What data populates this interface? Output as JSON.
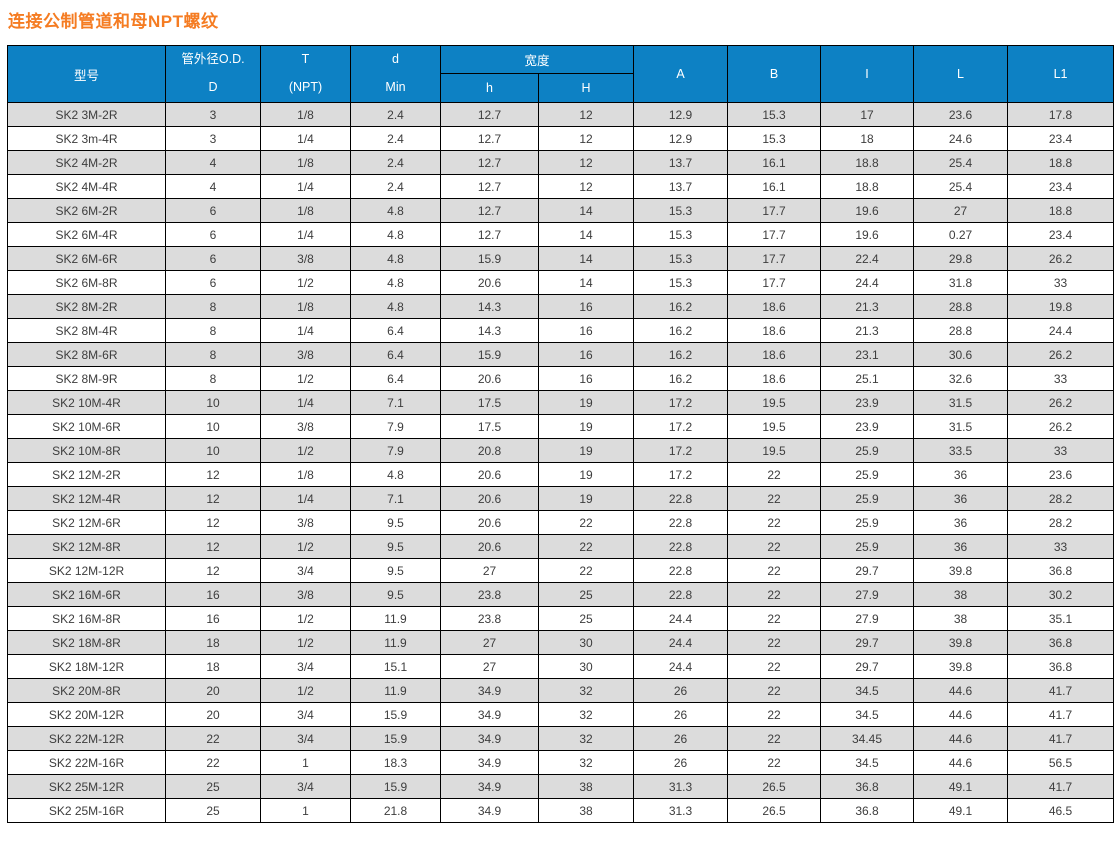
{
  "page_title": "连接公制管道和母NPT螺纹",
  "colors": {
    "title": "#f57c22",
    "header_bg": "#0d81c4",
    "header_text": "#ffffff",
    "stripe_row_bg": "#dcdcdc",
    "cell_text": "#3d3d3d",
    "border": "#000000"
  },
  "table": {
    "headers": {
      "model": "型号",
      "od_line1": "管外径O.D.",
      "od_line2": "D",
      "t_line1": "T",
      "t_line2": "(NPT)",
      "d_line1": "d",
      "d_line2": "Min",
      "width_group": "宽度",
      "width_sub_h": "h",
      "width_sub_H": "H",
      "col_a": "A",
      "col_b": "B",
      "col_i": "I",
      "col_l": "L",
      "col_l1": "L1"
    },
    "rows": [
      [
        "SK2 3M-2R",
        "3",
        "1/8",
        "2.4",
        "12.7",
        "12",
        "12.9",
        "15.3",
        "17",
        "23.6",
        "17.8"
      ],
      [
        "SK2 3m-4R",
        "3",
        "1/4",
        "2.4",
        "12.7",
        "12",
        "12.9",
        "15.3",
        "18",
        "24.6",
        "23.4"
      ],
      [
        "SK2 4M-2R",
        "4",
        "1/8",
        "2.4",
        "12.7",
        "12",
        "13.7",
        "16.1",
        "18.8",
        "25.4",
        "18.8"
      ],
      [
        "SK2 4M-4R",
        "4",
        "1/4",
        "2.4",
        "12.7",
        "12",
        "13.7",
        "16.1",
        "18.8",
        "25.4",
        "23.4"
      ],
      [
        "SK2 6M-2R",
        "6",
        "1/8",
        "4.8",
        "12.7",
        "14",
        "15.3",
        "17.7",
        "19.6",
        "27",
        "18.8"
      ],
      [
        "SK2 6M-4R",
        "6",
        "1/4",
        "4.8",
        "12.7",
        "14",
        "15.3",
        "17.7",
        "19.6",
        "0.27",
        "23.4"
      ],
      [
        "SK2 6M-6R",
        "6",
        "3/8",
        "4.8",
        "15.9",
        "14",
        "15.3",
        "17.7",
        "22.4",
        "29.8",
        "26.2"
      ],
      [
        "SK2 6M-8R",
        "6",
        "1/2",
        "4.8",
        "20.6",
        "14",
        "15.3",
        "17.7",
        "24.4",
        "31.8",
        "33"
      ],
      [
        "SK2 8M-2R",
        "8",
        "1/8",
        "4.8",
        "14.3",
        "16",
        "16.2",
        "18.6",
        "21.3",
        "28.8",
        "19.8"
      ],
      [
        "SK2 8M-4R",
        "8",
        "1/4",
        "6.4",
        "14.3",
        "16",
        "16.2",
        "18.6",
        "21.3",
        "28.8",
        "24.4"
      ],
      [
        "SK2 8M-6R",
        "8",
        "3/8",
        "6.4",
        "15.9",
        "16",
        "16.2",
        "18.6",
        "23.1",
        "30.6",
        "26.2"
      ],
      [
        "SK2 8M-9R",
        "8",
        "1/2",
        "6.4",
        "20.6",
        "16",
        "16.2",
        "18.6",
        "25.1",
        "32.6",
        "33"
      ],
      [
        "SK2 10M-4R",
        "10",
        "1/4",
        "7.1",
        "17.5",
        "19",
        "17.2",
        "19.5",
        "23.9",
        "31.5",
        "26.2"
      ],
      [
        "SK2 10M-6R",
        "10",
        "3/8",
        "7.9",
        "17.5",
        "19",
        "17.2",
        "19.5",
        "23.9",
        "31.5",
        "26.2"
      ],
      [
        "SK2 10M-8R",
        "10",
        "1/2",
        "7.9",
        "20.8",
        "19",
        "17.2",
        "19.5",
        "25.9",
        "33.5",
        "33"
      ],
      [
        "SK2 12M-2R",
        "12",
        "1/8",
        "4.8",
        "20.6",
        "19",
        "17.2",
        "22",
        "25.9",
        "36",
        "23.6"
      ],
      [
        "SK2 12M-4R",
        "12",
        "1/4",
        "7.1",
        "20.6",
        "19",
        "22.8",
        "22",
        "25.9",
        "36",
        "28.2"
      ],
      [
        "SK2 12M-6R",
        "12",
        "3/8",
        "9.5",
        "20.6",
        "22",
        "22.8",
        "22",
        "25.9",
        "36",
        "28.2"
      ],
      [
        "SK2 12M-8R",
        "12",
        "1/2",
        "9.5",
        "20.6",
        "22",
        "22.8",
        "22",
        "25.9",
        "36",
        "33"
      ],
      [
        "SK2 12M-12R",
        "12",
        "3/4",
        "9.5",
        "27",
        "22",
        "22.8",
        "22",
        "29.7",
        "39.8",
        "36.8"
      ],
      [
        "SK2 16M-6R",
        "16",
        "3/8",
        "9.5",
        "23.8",
        "25",
        "22.8",
        "22",
        "27.9",
        "38",
        "30.2"
      ],
      [
        "SK2 16M-8R",
        "16",
        "1/2",
        "11.9",
        "23.8",
        "25",
        "24.4",
        "22",
        "27.9",
        "38",
        "35.1"
      ],
      [
        "SK2 18M-8R",
        "18",
        "1/2",
        "11.9",
        "27",
        "30",
        "24.4",
        "22",
        "29.7",
        "39.8",
        "36.8"
      ],
      [
        "SK2 18M-12R",
        "18",
        "3/4",
        "15.1",
        "27",
        "30",
        "24.4",
        "22",
        "29.7",
        "39.8",
        "36.8"
      ],
      [
        "SK2 20M-8R",
        "20",
        "1/2",
        "11.9",
        "34.9",
        "32",
        "26",
        "22",
        "34.5",
        "44.6",
        "41.7"
      ],
      [
        "SK2 20M-12R",
        "20",
        "3/4",
        "15.9",
        "34.9",
        "32",
        "26",
        "22",
        "34.5",
        "44.6",
        "41.7"
      ],
      [
        "SK2 22M-12R",
        "22",
        "3/4",
        "15.9",
        "34.9",
        "32",
        "26",
        "22",
        "34.45",
        "44.6",
        "41.7"
      ],
      [
        "SK2 22M-16R",
        "22",
        "1",
        "18.3",
        "34.9",
        "32",
        "26",
        "22",
        "34.5",
        "44.6",
        "56.5"
      ],
      [
        "SK2 25M-12R",
        "25",
        "3/4",
        "15.9",
        "34.9",
        "38",
        "31.3",
        "26.5",
        "36.8",
        "49.1",
        "41.7"
      ],
      [
        "SK2 25M-16R",
        "25",
        "1",
        "21.8",
        "34.9",
        "38",
        "31.3",
        "26.5",
        "36.8",
        "49.1",
        "46.5"
      ]
    ]
  }
}
